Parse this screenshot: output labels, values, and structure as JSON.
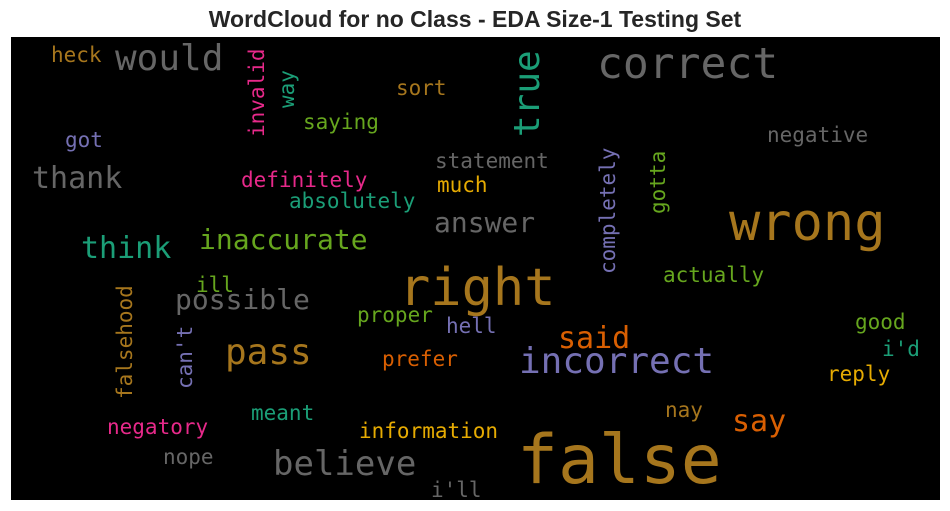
{
  "title": "WordCloud for no Class - EDA Size-1 Testing Set",
  "words": {
    "false": {
      "text": "false",
      "color": "#a6761d"
    },
    "right": {
      "text": "right",
      "color": "#a6761d"
    },
    "wrong": {
      "text": "wrong",
      "color": "#a6761d"
    },
    "correct": {
      "text": "correct",
      "color": "#666666"
    },
    "incorrect": {
      "text": "incorrect",
      "color": "#7570b3"
    },
    "would": {
      "text": "would",
      "color": "#666666"
    },
    "true": {
      "text": "true",
      "color": "#1b9e77"
    },
    "believe": {
      "text": "believe",
      "color": "#666666"
    },
    "pass": {
      "text": "pass",
      "color": "#a6761d"
    },
    "think": {
      "text": "think",
      "color": "#1b9e77"
    },
    "inaccurate": {
      "text": "inaccurate",
      "color": "#66a61e"
    },
    "thank": {
      "text": "thank",
      "color": "#666666"
    },
    "possible": {
      "text": "possible",
      "color": "#666666"
    },
    "answer": {
      "text": "answer",
      "color": "#666666"
    },
    "said": {
      "text": "said",
      "color": "#d95f02"
    },
    "say": {
      "text": "say",
      "color": "#d95f02"
    },
    "completely": {
      "text": "completely",
      "color": "#7570b3"
    },
    "invalid": {
      "text": "invalid",
      "color": "#e7298a"
    },
    "definitely": {
      "text": "definitely",
      "color": "#e7298a"
    },
    "statement": {
      "text": "statement",
      "color": "#666666"
    },
    "negative": {
      "text": "negative",
      "color": "#666666"
    },
    "absolutely": {
      "text": "absolutely",
      "color": "#1b9e77"
    },
    "saying": {
      "text": "saying",
      "color": "#66a61e"
    },
    "falsehood": {
      "text": "falsehood",
      "color": "#a6761d"
    },
    "actually": {
      "text": "actually",
      "color": "#66a61e"
    },
    "information": {
      "text": "information",
      "color": "#e6ab02"
    },
    "negatory": {
      "text": "negatory",
      "color": "#e7298a"
    },
    "much": {
      "text": "much",
      "color": "#e6ab02"
    },
    "sort": {
      "text": "sort",
      "color": "#a6761d"
    },
    "gotta": {
      "text": "gotta",
      "color": "#66a61e"
    },
    "heck": {
      "text": "heck",
      "color": "#a6761d"
    },
    "way": {
      "text": "way",
      "color": "#1b9e77"
    },
    "got": {
      "text": "got",
      "color": "#7570b3"
    },
    "proper": {
      "text": "proper",
      "color": "#66a61e"
    },
    "hell": {
      "text": "hell",
      "color": "#7570b3"
    },
    "prefer": {
      "text": "prefer",
      "color": "#d95f02"
    },
    "good": {
      "text": "good",
      "color": "#66a61e"
    },
    "id": {
      "text": "i'd",
      "color": "#1b9e77"
    },
    "reply": {
      "text": "reply",
      "color": "#e6ab02"
    },
    "meant": {
      "text": "meant",
      "color": "#1b9e77"
    },
    "nay": {
      "text": "nay",
      "color": "#a6761d"
    },
    "nope": {
      "text": "nope",
      "color": "#666666"
    },
    "ill_word": {
      "text": "ill",
      "color": "#66a61e"
    },
    "cant": {
      "text": "can't",
      "color": "#7570b3"
    },
    "ill": {
      "text": "i'll",
      "color": "#666666"
    }
  }
}
